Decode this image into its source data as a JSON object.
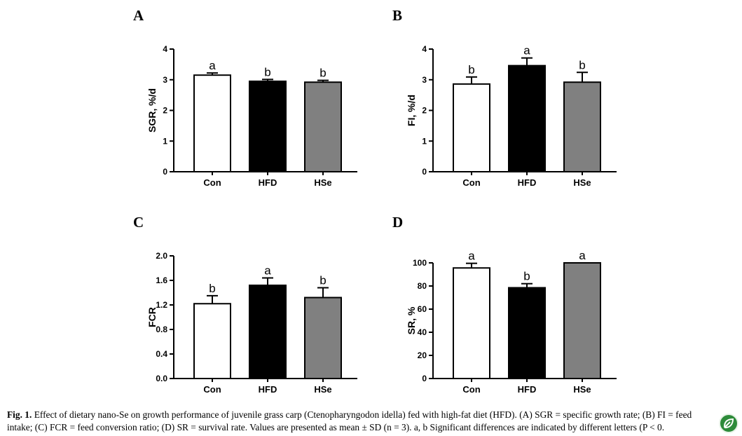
{
  "chart_data": [
    {
      "panel": "A",
      "type": "bar",
      "categories": [
        "Con",
        "HFD",
        "HSe"
      ],
      "values": [
        3.15,
        2.95,
        2.92
      ],
      "errors": [
        0.07,
        0.06,
        0.06
      ],
      "significance": [
        "a",
        "b",
        "b"
      ],
      "bar_colors": [
        "#ffffff",
        "#000000",
        "#808080"
      ],
      "ylabel": "SGR, %/d",
      "yticks": [
        "0",
        "1",
        "2",
        "3",
        "4"
      ],
      "ylim": [
        0,
        4
      ]
    },
    {
      "panel": "B",
      "type": "bar",
      "categories": [
        "Con",
        "HFD",
        "HSe"
      ],
      "values": [
        2.86,
        3.46,
        2.92
      ],
      "errors": [
        0.23,
        0.25,
        0.32
      ],
      "significance": [
        "b",
        "a",
        "b"
      ],
      "bar_colors": [
        "#ffffff",
        "#000000",
        "#808080"
      ],
      "ylabel": "FI, %/d",
      "yticks": [
        "0",
        "1",
        "2",
        "3",
        "4"
      ],
      "ylim": [
        0,
        4
      ]
    },
    {
      "panel": "C",
      "type": "bar",
      "categories": [
        "Con",
        "HFD",
        "HSe"
      ],
      "values": [
        1.22,
        1.52,
        1.32
      ],
      "errors": [
        0.13,
        0.12,
        0.16
      ],
      "significance": [
        "b",
        "a",
        "b"
      ],
      "bar_colors": [
        "#ffffff",
        "#000000",
        "#808080"
      ],
      "ylabel": "FCR",
      "yticks": [
        "0.0",
        "0.4",
        "0.8",
        "1.2",
        "1.6",
        "2.0"
      ],
      "ylim": [
        0,
        2.0
      ]
    },
    {
      "panel": "D",
      "type": "bar",
      "categories": [
        "Con",
        "HFD",
        "HSe"
      ],
      "values": [
        95.6,
        78.5,
        100
      ],
      "errors": [
        4.0,
        3.5,
        0
      ],
      "significance": [
        "a",
        "b",
        "a"
      ],
      "bar_colors": [
        "#ffffff",
        "#000000",
        "#808080"
      ],
      "ylabel": "SR, %",
      "yticks": [
        "0",
        "20",
        "40",
        "60",
        "80",
        "100"
      ],
      "ylim": [
        0,
        100
      ]
    }
  ],
  "caption": {
    "fig": "Fig. 1.",
    "line1": "Effect of dietary nano-Se on growth performance of juvenile grass carp (Ctenopharyngodon idella) fed with high-fat diet (HFD). (A) SGR = specific growth rate; (B) FI = feed",
    "line2": "intake; (C) FCR = feed conversion ratio; (D) SR = survival rate. Values are presented as mean ± SD (n = 3). a, b Significant differences are indicated by different letters (P < 0."
  },
  "badge_icon": "leaf-badge-icon"
}
